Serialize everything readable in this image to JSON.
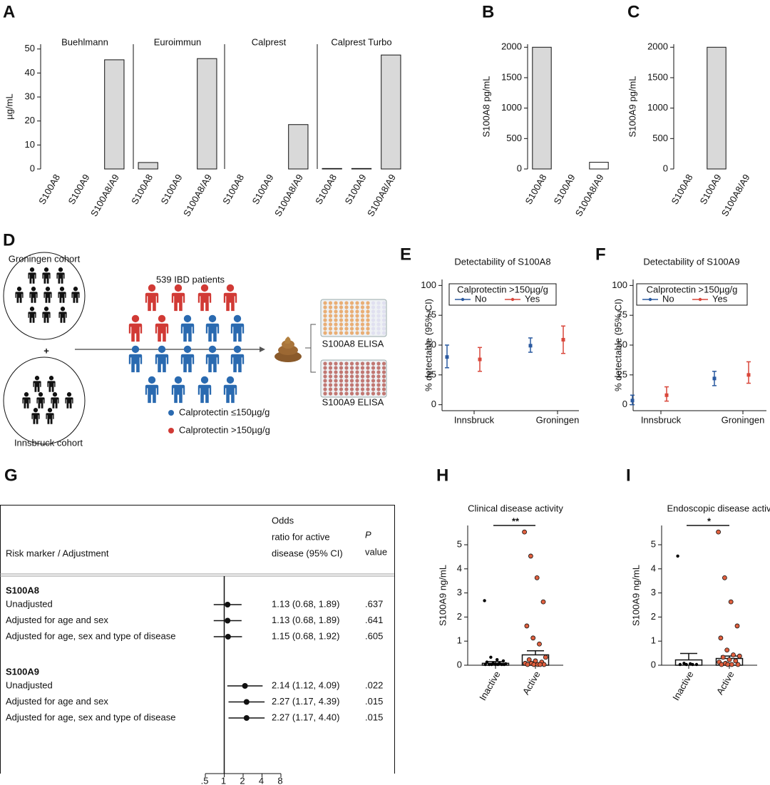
{
  "chart_data": [
    {
      "type": "bar",
      "panel": "A",
      "title": "Buehlmann",
      "ylabel": "µg/mL",
      "categories": [
        "S100A8",
        "S100A9",
        "S100A8/A9"
      ],
      "values": [
        0,
        0,
        45.5
      ],
      "color": "#d9d9d9",
      "ylim": [
        0,
        52
      ],
      "yticks": [
        0,
        10,
        20,
        30,
        40,
        50
      ]
    },
    {
      "type": "bar",
      "title": "Euroimmun",
      "categories": [
        "S100A8",
        "S100A9",
        "S100A8/A9"
      ],
      "values": [
        2.7,
        0,
        46
      ],
      "color": "#d9d9d9",
      "ylim": [
        0,
        52
      ]
    },
    {
      "type": "bar",
      "title": "Calprest",
      "categories": [
        "S100A8",
        "S100A9",
        "S100A8/A9"
      ],
      "values": [
        0,
        0,
        18.5
      ],
      "color": "#d9d9d9",
      "ylim": [
        0,
        52
      ]
    },
    {
      "type": "bar",
      "title": "Calprest Turbo",
      "categories": [
        "S100A8",
        "S100A9",
        "S100A8/A9"
      ],
      "values": [
        0.2,
        0.2,
        47.5
      ],
      "color": "#d9d9d9",
      "ylim": [
        0,
        52
      ]
    },
    {
      "type": "bar",
      "panel": "B",
      "ylabel": "S100A8 pg/mL",
      "categories": [
        "S100A8",
        "S100A9",
        "S100A8/A9"
      ],
      "values": [
        2000,
        0,
        110
      ],
      "colors": [
        "#d9d9d9",
        "#d9d9d9",
        "#ffffff"
      ],
      "ylim": [
        0,
        2050
      ],
      "yticks": [
        0,
        500,
        1000,
        1500,
        2000
      ]
    },
    {
      "type": "bar",
      "panel": "C",
      "ylabel": "S100A9 pg/mL",
      "categories": [
        "S100A8",
        "S100A9",
        "S100A8/A9"
      ],
      "values": [
        0,
        2000,
        0
      ],
      "color": "#d9d9d9",
      "ylim": [
        0,
        2050
      ],
      "yticks": [
        0,
        500,
        1000,
        1500,
        2000
      ]
    },
    {
      "type": "errorbar",
      "panel": "E",
      "title": "Detectability of S100A8",
      "ylabel": "% detectable (95% CI)",
      "categories": [
        "Innsbruck",
        "Groningen"
      ],
      "legend_title": "Calprotectin >150µg/g",
      "legend": "upper left",
      "series": [
        {
          "name": "No",
          "color": "#2b5aa0",
          "values": [
            40,
            49.5
          ],
          "lower": [
            31,
            44
          ],
          "upper": [
            50,
            56
          ]
        },
        {
          "name": "Yes",
          "color": "#d9473b",
          "values": [
            38,
            54.5
          ],
          "lower": [
            28,
            43
          ],
          "upper": [
            48,
            66
          ]
        }
      ],
      "ylim": [
        -5,
        105
      ],
      "yticks": [
        0,
        25,
        50,
        75,
        100
      ]
    },
    {
      "type": "errorbar",
      "panel": "F",
      "title": "Detectability of S100A9",
      "ylabel": "% detectable (95% CI)",
      "categories": [
        "Innsbruck",
        "Groningen"
      ],
      "legend_title": "Calprotectin >150µg/g",
      "legend": "upper left",
      "series": [
        {
          "name": "No",
          "color": "#2b5aa0",
          "values": [
            3.5,
            22
          ],
          "lower": [
            0,
            16
          ],
          "upper": [
            8,
            28
          ]
        },
        {
          "name": "Yes",
          "color": "#d9473b",
          "values": [
            8,
            25
          ],
          "lower": [
            3,
            18
          ],
          "upper": [
            15,
            36
          ]
        }
      ],
      "ylim": [
        -5,
        105
      ],
      "yticks": [
        0,
        25,
        50,
        75,
        100
      ]
    },
    {
      "type": "forest",
      "panel": "G",
      "headers": {
        "marker": "Risk marker / Adjustment",
        "or": [
          "Odds",
          "ratio for active",
          "disease (95% CI)"
        ],
        "p": [
          "P",
          "value"
        ]
      },
      "groups": [
        {
          "name": "S100A8",
          "labels": [
            "Unadjusted",
            "Adjusted for age and sex",
            "Adjusted for age, sex and type of disease"
          ],
          "values": [
            1.13,
            1.13,
            1.15
          ],
          "lower": [
            0.68,
            0.68,
            0.68
          ],
          "upper": [
            1.89,
            1.89,
            1.92
          ],
          "value_labels": [
            "1.13 (0.68, 1.89)",
            "1.13 (0.68, 1.89)",
            "1.15 (0.68, 1.92)"
          ],
          "p_values": [
            ".637",
            ".641",
            ".605"
          ]
        },
        {
          "name": "S100A9",
          "labels": [
            "Unadjusted",
            "Adjusted for age and sex",
            "Adjusted for age, sex and type of disease"
          ],
          "values": [
            2.14,
            2.27,
            2.27
          ],
          "lower": [
            1.12,
            1.17,
            1.17
          ],
          "upper": [
            4.09,
            4.39,
            4.4
          ],
          "value_labels": [
            "2.14 (1.12, 4.09)",
            "2.27 (1.17, 4.39)",
            "2.27 (1.17, 4.40)"
          ],
          "p_values": [
            ".022",
            ".015",
            ".015"
          ]
        }
      ],
      "log": true,
      "reference_line": 1,
      "xlim": [
        0.5,
        8
      ],
      "xticks": [
        {
          "value": 0.5,
          "label": ".5"
        },
        1,
        2,
        4,
        8
      ]
    },
    {
      "type": "dotbar",
      "panel": "H",
      "title": "Clinical disease activity",
      "ylabel": "S100A9 ng/mL",
      "significance": "**",
      "categories": [
        "Inactive",
        "Active"
      ],
      "values": [
        0.08,
        0.43
      ],
      "errors": [
        0.07,
        0.17
      ],
      "point_colors": [
        "#000000",
        "#e0603f"
      ],
      "points": [
        [
          2.65,
          0.3,
          0.2,
          0.15,
          0.1,
          0.05,
          0.05,
          0.03,
          0,
          0,
          0,
          0,
          0,
          0,
          0
        ],
        [
          5.5,
          4.5,
          3.6,
          2.6,
          1.6,
          1.1,
          0.85,
          0.3,
          0.2,
          0.15,
          0.1,
          0.05,
          0.05,
          0,
          0,
          0,
          0,
          0
        ]
      ],
      "ylim": [
        0,
        5.8
      ],
      "yticks": [
        0,
        1,
        2,
        3,
        4,
        5
      ]
    },
    {
      "type": "dotbar",
      "panel": "I",
      "title": "Endoscopic disease activity",
      "ylabel": "S100A9 ng/mL",
      "significance": "*",
      "categories": [
        "Inactive",
        "Active"
      ],
      "values": [
        0.22,
        0.28
      ],
      "errors": [
        0.27,
        0.1
      ],
      "point_colors": [
        "#000000",
        "#e0603f"
      ],
      "points": [
        [
          4.5,
          0.05,
          0.03,
          0,
          0,
          0,
          0
        ],
        [
          5.5,
          3.6,
          2.6,
          1.6,
          1.1,
          0.6,
          0.4,
          0.35,
          0.3,
          0.2,
          0.15,
          0.1,
          0.05,
          0,
          0,
          0,
          0
        ]
      ],
      "ylim": [
        0,
        5.8
      ],
      "yticks": [
        0,
        1,
        2,
        3,
        4,
        5
      ]
    }
  ],
  "diagram": {
    "panel": "D",
    "cohorts": [
      "Groningen cohort",
      "Innsbruck cohort"
    ],
    "plus": "+",
    "patients": "539 IBD patients",
    "assays": [
      "S100A8 ELISA",
      "S100A9 ELISA"
    ],
    "legend": [
      {
        "label": "Calprotectin ≤150µg/g",
        "color": "#2a6ab0"
      },
      {
        "label": "Calprotectin >150µg/g",
        "color": "#d13a35"
      }
    ]
  }
}
